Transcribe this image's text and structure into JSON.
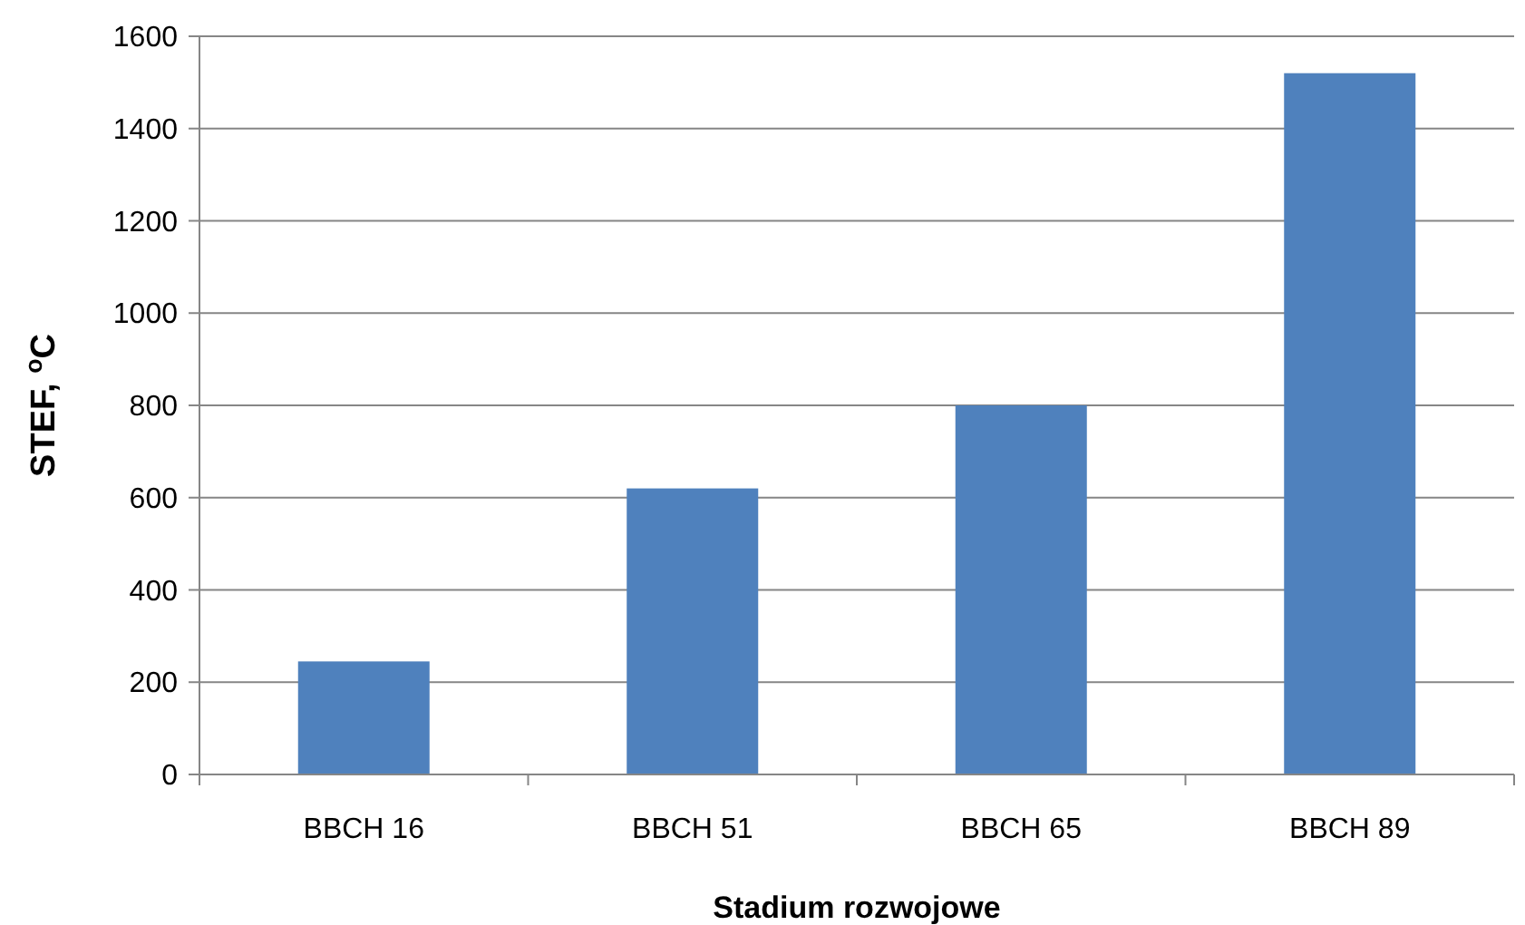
{
  "chart_data": {
    "type": "bar",
    "xlabel": "Stadium rozwojowe",
    "ylabel": "STEF, $^{o}$C",
    "categories": [
      "BBCH 16",
      "BBCH 51",
      "BBCH 65",
      "BBCH 89"
    ],
    "values": [
      245,
      620,
      800,
      1520
    ],
    "color": "#4f81bd",
    "ylim": [
      0,
      1600
    ],
    "yticks": [
      0,
      200,
      400,
      600,
      800,
      1000,
      1200,
      1400,
      1600
    ],
    "grid": "y"
  }
}
